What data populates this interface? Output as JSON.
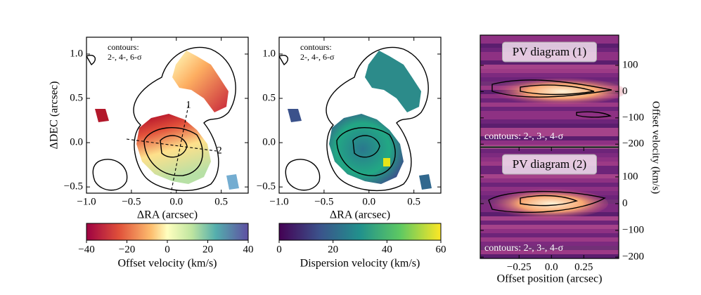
{
  "chart_data": [
    {
      "type": "map",
      "xlabel": "ΔRA (arcsec)",
      "ylabel": "ΔDEC (arcsec)",
      "xlim": [
        -1.0,
        0.8
      ],
      "ylim": [
        -0.57,
        1.19
      ],
      "xticks": [
        {
          "value": -1.0,
          "label": "−1.0"
        },
        {
          "value": -0.5,
          "label": "−0.5"
        },
        {
          "value": 0.0,
          "label": "0.0"
        },
        0.5
      ],
      "yticks": [
        {
          "value": -0.5,
          "label": "−0.5"
        },
        {
          "value": 0.0,
          "label": "0.0"
        },
        0.5,
        {
          "value": 1.0,
          "label": "1.0"
        }
      ],
      "annotation": [
        "contours:",
        "2-, 4-, 6-σ"
      ],
      "cut_labels": [
        "1",
        "2"
      ],
      "colorbar": {
        "label": "Offset velocity (km/s)",
        "lim": [
          -40,
          40
        ],
        "ticks": [
          {
            "value": -40,
            "label": "−40"
          },
          {
            "value": -20,
            "label": "−20"
          },
          0,
          20,
          40
        ]
      }
    },
    {
      "type": "map",
      "xlabel": "ΔRA (arcsec)",
      "xlim": [
        -1.0,
        0.8
      ],
      "ylim": [
        -0.57,
        1.19
      ],
      "xticks": [
        {
          "value": -1.0,
          "label": "−1.0"
        },
        {
          "value": -0.5,
          "label": "−0.5"
        },
        {
          "value": 0.0,
          "label": "0.0"
        },
        0.5
      ],
      "yticks": [
        {
          "value": -0.5,
          "label": "−0.5"
        },
        {
          "value": 0.0,
          "label": "0.0"
        },
        0.5,
        {
          "value": 1.0,
          "label": "1.0"
        }
      ],
      "annotation": [
        "contours:",
        "2-, 4-, 6-σ"
      ],
      "colorbar": {
        "label": "Dispersion velocity (km/s)",
        "lim": [
          0,
          60
        ],
        "ticks": [
          0,
          20,
          40,
          60
        ]
      }
    },
    {
      "type": "pv",
      "title": "PV diagram (1)",
      "annotation": "contours: 2-, 3-, 4-σ",
      "ylabel": "Offset velocity (km/s)",
      "xlim": [
        -0.55,
        0.52
      ],
      "ylim": [
        -210,
        215
      ],
      "yticks": [
        100,
        0,
        {
          "value": -100,
          "label": "−100"
        },
        {
          "value": -200,
          "label": "−200"
        }
      ]
    },
    {
      "type": "pv",
      "title": "PV diagram (2)",
      "annotation": "contours: 2-, 3-, 4-σ",
      "xlabel": "Offset position (arcsec)",
      "xlim": [
        -0.55,
        0.52
      ],
      "ylim": [
        -205,
        210
      ],
      "xticks": [
        {
          "value": -0.25,
          "label": "−0.25"
        },
        {
          "value": 0.0,
          "label": "0.0"
        },
        0.25
      ],
      "yticks": [
        100,
        0,
        {
          "value": -100,
          "label": "−100"
        },
        {
          "value": -200,
          "label": "−200"
        }
      ]
    }
  ]
}
